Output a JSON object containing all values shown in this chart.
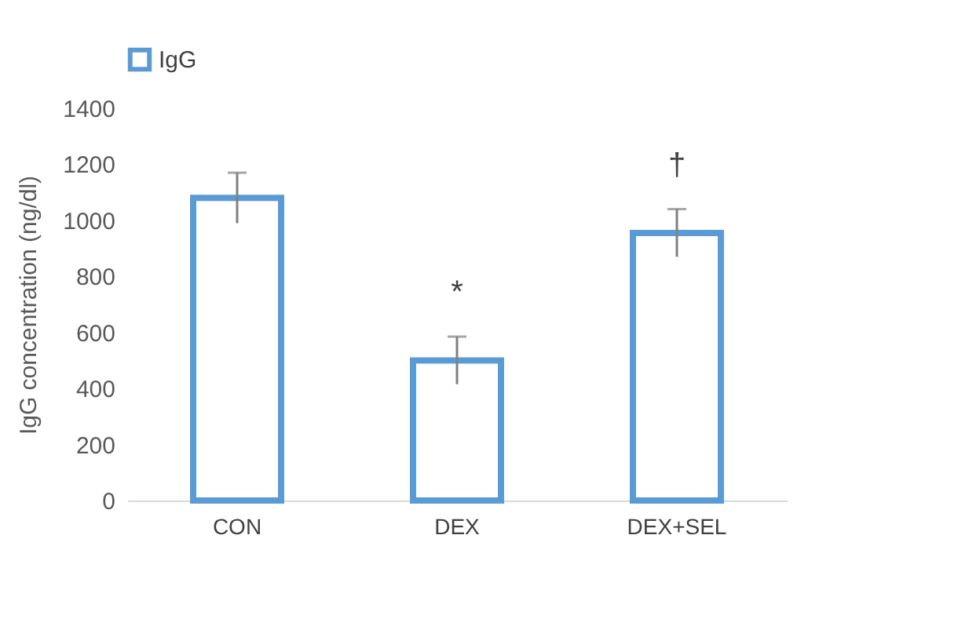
{
  "chart_data": {
    "type": "bar",
    "ylabel": "IgG concentration (ng/dl)",
    "categories": [
      "CON",
      "DEX",
      "DEX+SEL"
    ],
    "series": [
      {
        "name": "IgG",
        "color": "#5b9bd5",
        "values": [
          1080,
          500,
          955
        ],
        "errors": [
          90,
          85,
          85
        ]
      }
    ],
    "ylim": [
      0,
      1400
    ],
    "yticks": [
      0,
      200,
      400,
      600,
      800,
      1000,
      1200,
      1400
    ],
    "grid": false,
    "legend": "top",
    "annotations": [
      "*",
      "†"
    ]
  }
}
